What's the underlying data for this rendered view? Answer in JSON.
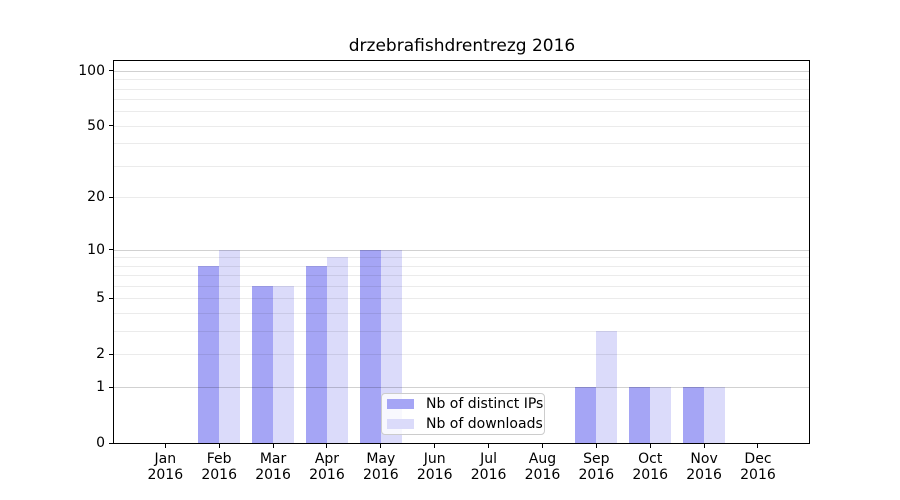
{
  "chart_data": {
    "type": "bar",
    "title": "drzebrafishdrentrezg 2016",
    "x_categories": [
      "Jan",
      "Feb",
      "Mar",
      "Apr",
      "May",
      "Jun",
      "Jul",
      "Aug",
      "Sep",
      "Oct",
      "Nov",
      "Dec"
    ],
    "x_year": "2016",
    "series": [
      {
        "name": "Nb of distinct IPs",
        "color": "#a5a5f5",
        "values": [
          0,
          8,
          6,
          8,
          10,
          0,
          0,
          0,
          1,
          1,
          1,
          0
        ]
      },
      {
        "name": "Nb of downloads",
        "color": "#dbdbfa",
        "values": [
          0,
          10,
          6,
          9,
          10,
          0,
          0,
          0,
          3,
          1,
          1,
          0
        ]
      }
    ],
    "y_scale": "log10(v+1)",
    "ylim": [
      0,
      113
    ],
    "y_ticks": [
      {
        "label": "100",
        "value": 100
      },
      {
        "label": "50",
        "value": 50
      },
      {
        "label": "20",
        "value": 20
      },
      {
        "label": "10",
        "value": 10
      },
      {
        "label": "5",
        "value": 5
      },
      {
        "label": "2",
        "value": 2
      },
      {
        "label": "1",
        "value": 1
      },
      {
        "label": "0",
        "value": 0
      }
    ],
    "grid_minor_values": [
      2,
      3,
      4,
      5,
      6,
      7,
      8,
      9,
      20,
      30,
      40,
      50,
      60,
      70,
      80,
      90
    ],
    "grid_major_values": [
      1,
      10,
      100
    ],
    "legend_position": "lower center (inside plot)",
    "colors": {
      "grid_minor": "rgba(0,0,0,0.08)",
      "grid_major": "rgba(0,0,0,0.18)",
      "spine": "#000000",
      "text": "#000000",
      "background": "#ffffff"
    }
  }
}
